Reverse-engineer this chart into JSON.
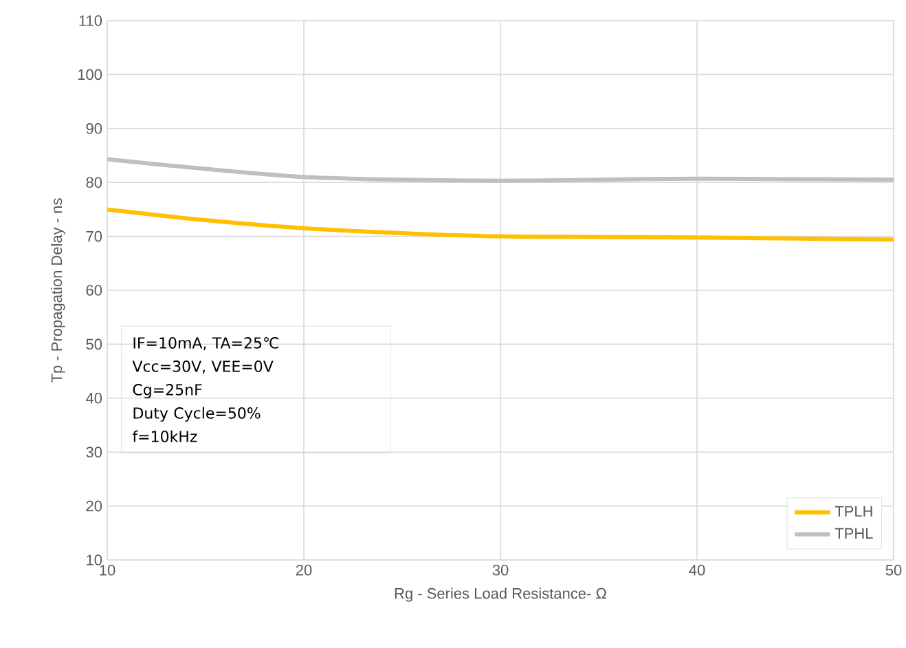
{
  "chart_data": {
    "type": "line",
    "xlabel": "Rg - Series Load Resistance- Ω",
    "ylabel": "Tp - Propagation Delay - ns",
    "x": [
      10,
      15,
      20,
      25,
      30,
      35,
      40,
      45,
      50
    ],
    "series": [
      {
        "name": "TPLH",
        "color": "#ffc000",
        "values": [
          75,
          73,
          71.5,
          70.6,
          70,
          69.9,
          69.8,
          69.6,
          69.4
        ]
      },
      {
        "name": "TPHL",
        "color": "#bfbfbf",
        "values": [
          84.3,
          82.5,
          81,
          80.5,
          80.3,
          80.5,
          80.7,
          80.6,
          80.5
        ]
      }
    ],
    "xlim": [
      10,
      50
    ],
    "xticks": [
      10,
      20,
      30,
      40,
      50
    ],
    "ylim": [
      10,
      110
    ],
    "yticks": [
      10,
      20,
      30,
      40,
      50,
      60,
      70,
      80,
      90,
      100,
      110
    ],
    "grid": true,
    "legend": "bottom right",
    "marker": "none",
    "line_style": "solid",
    "annotations": [
      "IF=10mA, TA=25℃",
      "Vcc=30V, VEE=0V",
      "Cg=25nF",
      "Duty Cycle=50%",
      "f=10kHz"
    ]
  }
}
